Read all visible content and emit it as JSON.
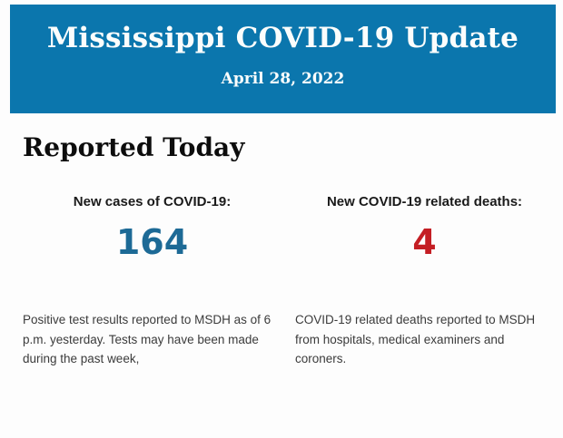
{
  "banner": {
    "title": "Mississippi COVID-19 Update",
    "date": "April 28, 2022",
    "bg_color": "#0b76ad",
    "text_color": "#fbfdfc"
  },
  "main": {
    "heading": "Reported Today",
    "stats": [
      {
        "label": "New cases of COVID-19:",
        "value": "164",
        "value_color": "#1d6a96",
        "description": "Positive test results reported to MSDH as of 6 p.m. yesterday. Tests may have been made during the past week,"
      },
      {
        "label": "New COVID-19 related deaths:",
        "value": "4",
        "value_color": "#c41e24",
        "description": "COVID-19 related deaths reported to MSDH from hospitals, medical examiners and coroners."
      }
    ]
  }
}
